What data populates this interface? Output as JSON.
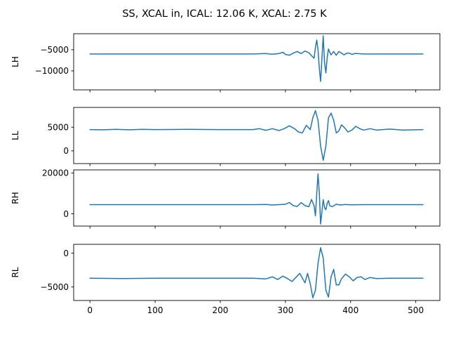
{
  "figure": {
    "title": "SS, XCAL in, ICAL: 12.06 K, XCAL: 2.75 K"
  },
  "colors": {
    "series": "#1f77b4"
  },
  "chart_data": [
    {
      "type": "line",
      "ylabel": "LH",
      "xlim": [
        -25,
        537
      ],
      "ylim": [
        -14500,
        -1200
      ],
      "xticks": [
        0,
        100,
        200,
        300,
        400,
        500
      ],
      "xtick_labels_shown": false,
      "yticks": [
        -10000,
        -5000
      ],
      "ytick_labels": [
        "−10000",
        "−5000"
      ],
      "grid": false,
      "series": [
        {
          "x": [
            0,
            50,
            100,
            150,
            200,
            250,
            270,
            280,
            290,
            296,
            300,
            306,
            312,
            318,
            324,
            330,
            336,
            340,
            344,
            346,
            348,
            350,
            352,
            354,
            356,
            358,
            360,
            362,
            364,
            366,
            368,
            370,
            374,
            378,
            382,
            386,
            390,
            394,
            398,
            402,
            406,
            410,
            420,
            440,
            470,
            511
          ],
          "y": [
            -6000,
            -6000,
            -6000,
            -6000,
            -6000,
            -6000,
            -5900,
            -6050,
            -5900,
            -5600,
            -6100,
            -6300,
            -5800,
            -5400,
            -5900,
            -5300,
            -5700,
            -6400,
            -7000,
            -4500,
            -2700,
            -5000,
            -9500,
            -12500,
            -7000,
            -1700,
            -8000,
            -10500,
            -7000,
            -4800,
            -5600,
            -6200,
            -5400,
            -6300,
            -5400,
            -5800,
            -6200,
            -5800,
            -5800,
            -6100,
            -5900,
            -5900,
            -6000,
            -6000,
            -6000,
            -6000
          ]
        }
      ]
    },
    {
      "type": "line",
      "ylabel": "LL",
      "xlim": [
        -25,
        537
      ],
      "ylim": [
        -2700,
        9200
      ],
      "xticks": [
        0,
        100,
        200,
        300,
        400,
        500
      ],
      "xtick_labels_shown": false,
      "yticks": [
        0,
        5000
      ],
      "ytick_labels": [
        "0",
        "5000"
      ],
      "grid": false,
      "series": [
        {
          "x": [
            0,
            20,
            40,
            60,
            80,
            100,
            150,
            200,
            250,
            260,
            270,
            280,
            290,
            298,
            306,
            314,
            320,
            326,
            332,
            338,
            342,
            346,
            350,
            354,
            358,
            362,
            366,
            370,
            374,
            378,
            382,
            386,
            390,
            396,
            402,
            408,
            414,
            420,
            430,
            440,
            460,
            480,
            511
          ],
          "y": [
            4500,
            4450,
            4550,
            4450,
            4550,
            4500,
            4550,
            4500,
            4500,
            4700,
            4350,
            4700,
            4300,
            4700,
            5300,
            4700,
            4000,
            3800,
            5400,
            4500,
            7000,
            8500,
            6500,
            1000,
            -2000,
            1000,
            7000,
            8000,
            6500,
            3800,
            4200,
            5500,
            5000,
            4000,
            4400,
            5200,
            4700,
            4400,
            4700,
            4400,
            4600,
            4400,
            4500
          ]
        }
      ]
    },
    {
      "type": "line",
      "ylabel": "RH",
      "xlim": [
        -25,
        537
      ],
      "ylim": [
        -6000,
        21500
      ],
      "xticks": [
        0,
        100,
        200,
        300,
        400,
        500
      ],
      "xtick_labels_shown": false,
      "yticks": [
        0,
        20000
      ],
      "ytick_labels": [
        "0",
        "20000"
      ],
      "grid": false,
      "series": [
        {
          "x": [
            0,
            100,
            200,
            250,
            270,
            280,
            290,
            300,
            306,
            312,
            318,
            324,
            330,
            336,
            340,
            344,
            346,
            348,
            350,
            352,
            354,
            356,
            358,
            360,
            362,
            364,
            366,
            368,
            372,
            378,
            384,
            392,
            400,
            420,
            450,
            511
          ],
          "y": [
            4500,
            4500,
            4500,
            4500,
            4600,
            4300,
            4500,
            4700,
            5500,
            4000,
            3600,
            5500,
            4000,
            3500,
            7000,
            4000,
            -1000,
            10000,
            19500,
            10000,
            -5000,
            1000,
            7000,
            3000,
            2000,
            5000,
            6500,
            4000,
            3500,
            4700,
            4300,
            4600,
            4400,
            4500,
            4500,
            4500
          ]
        }
      ]
    },
    {
      "type": "line",
      "ylabel": "RL",
      "xlim": [
        -25,
        537
      ],
      "ylim": [
        -7000,
        1300
      ],
      "xticks": [
        0,
        100,
        200,
        300,
        400,
        500
      ],
      "xtick_labels_shown": true,
      "xtick_labels": [
        "0",
        "100",
        "200",
        "300",
        "400",
        "500"
      ],
      "yticks": [
        -5000,
        0
      ],
      "ytick_labels": [
        "−5000",
        "0"
      ],
      "grid": false,
      "series": [
        {
          "x": [
            0,
            50,
            100,
            150,
            200,
            250,
            270,
            280,
            288,
            296,
            304,
            310,
            316,
            322,
            326,
            330,
            334,
            338,
            342,
            346,
            350,
            354,
            358,
            362,
            366,
            370,
            374,
            378,
            382,
            386,
            392,
            398,
            404,
            410,
            416,
            422,
            430,
            440,
            460,
            511
          ],
          "y": [
            -3700,
            -3750,
            -3700,
            -3700,
            -3700,
            -3700,
            -3800,
            -3500,
            -3900,
            -3400,
            -3800,
            -4200,
            -3600,
            -3000,
            -3700,
            -4400,
            -3000,
            -4500,
            -6600,
            -5500,
            -1500,
            800,
            -700,
            -5500,
            -6500,
            -3500,
            -2400,
            -4700,
            -4700,
            -3800,
            -3100,
            -3500,
            -4100,
            -3600,
            -3500,
            -3900,
            -3600,
            -3750,
            -3700,
            -3700
          ]
        }
      ]
    }
  ]
}
